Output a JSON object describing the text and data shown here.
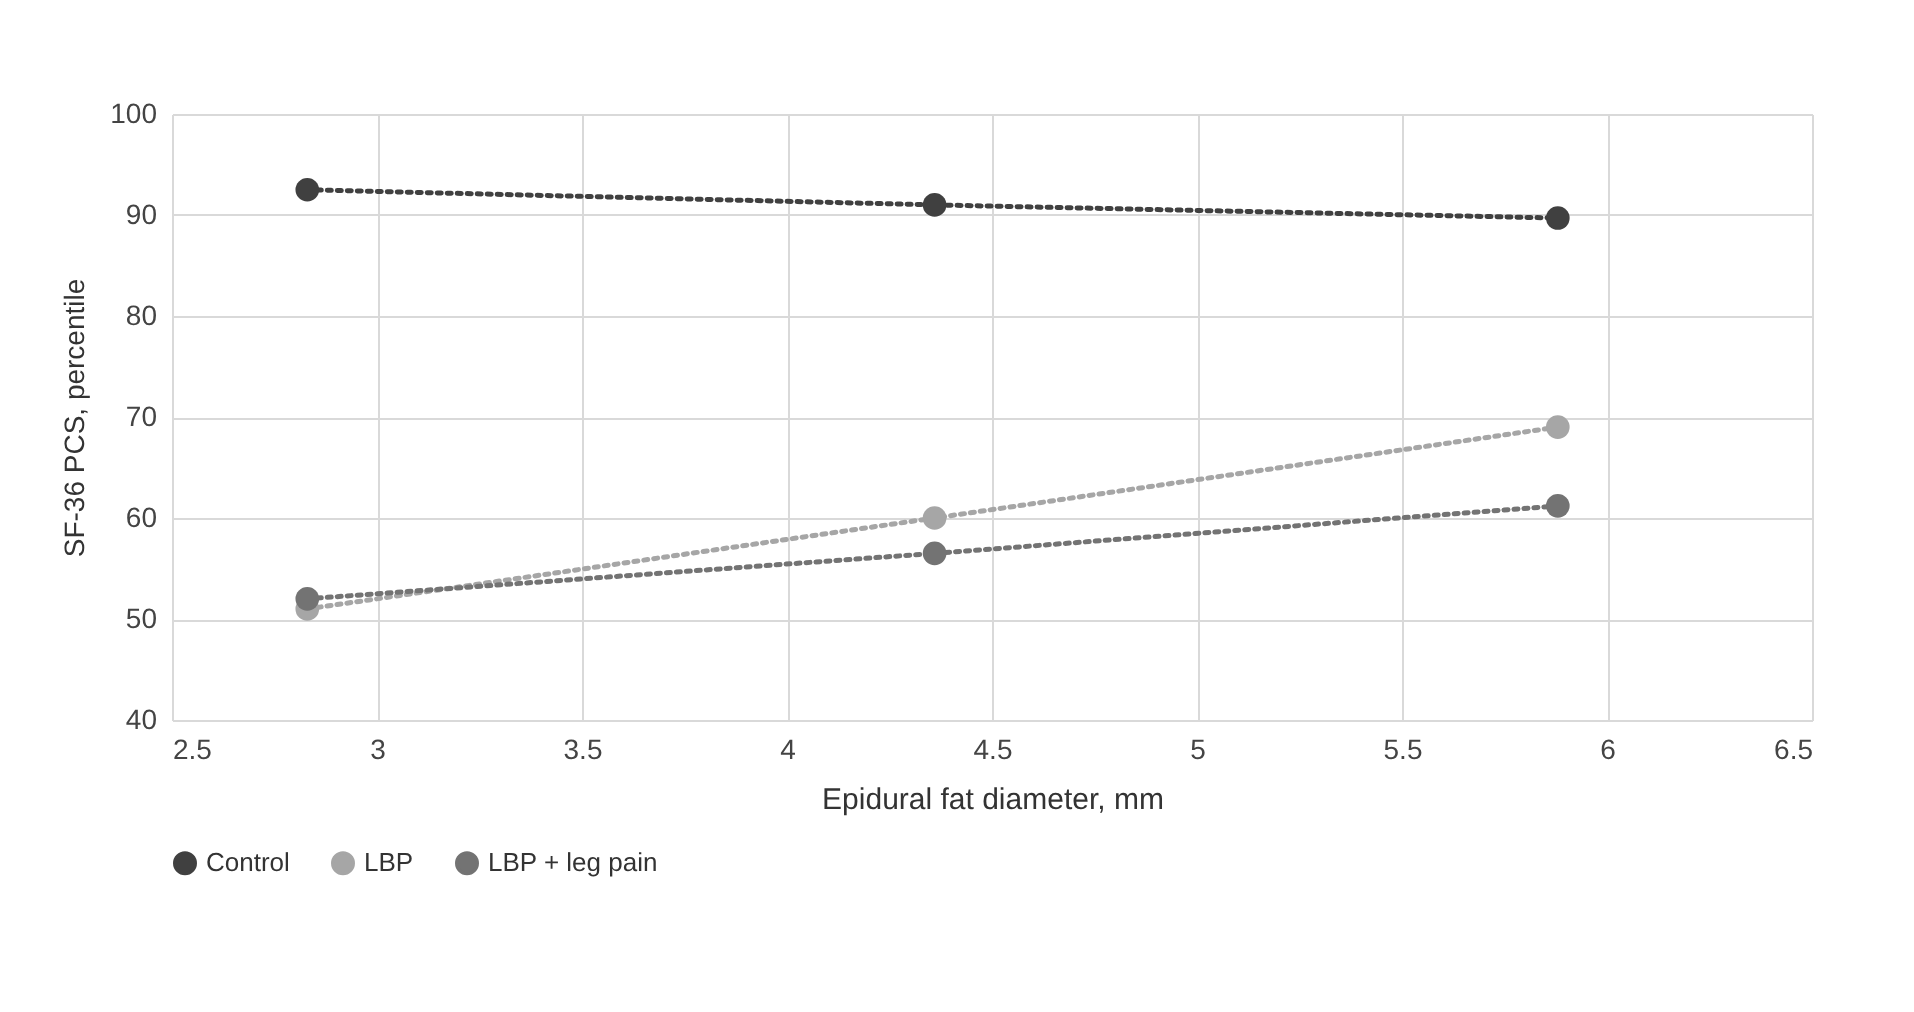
{
  "chart_data": {
    "type": "line",
    "xlabel": "Epidural fat diameter, mm",
    "ylabel": "SF-36 PCS, percentile",
    "x": [
      2.83,
      4.36,
      5.88
    ],
    "series": [
      {
        "name": "Control",
        "color": "#404040",
        "values": [
          92.5,
          91,
          89.7
        ]
      },
      {
        "name": "LBP",
        "color": "#a6a6a6",
        "values": [
          51,
          60,
          69
        ]
      },
      {
        "name": "LBP + leg pain",
        "color": "#737373",
        "values": [
          52,
          56.5,
          61.2
        ]
      }
    ],
    "xlim": [
      2.5,
      6.5
    ],
    "xticks": [
      2.5,
      3,
      3.5,
      4,
      4.5,
      5,
      5.5,
      6,
      6.5
    ],
    "ylim": [
      40,
      100
    ],
    "yticks": [
      40,
      50,
      60,
      70,
      80,
      90,
      100
    ],
    "grid": true,
    "legend": "bottom",
    "marker": "circle",
    "line_style": "dotted"
  }
}
